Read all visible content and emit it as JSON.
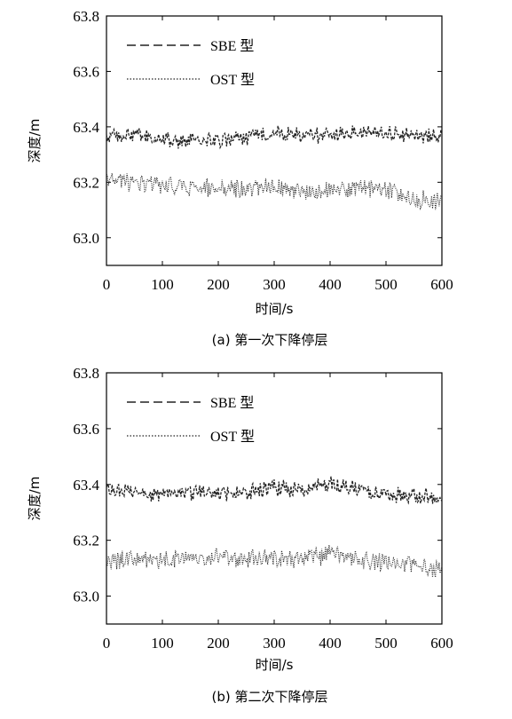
{
  "chart_data": [
    {
      "type": "line",
      "caption": "(a) 第一次下降停层",
      "xlabel": "时间/s",
      "ylabel": "深度/m",
      "xlim": [
        0,
        600
      ],
      "ylim": [
        62.9,
        63.8
      ],
      "xticks": [
        "0",
        "100",
        "200",
        "300",
        "400",
        "500",
        "600"
      ],
      "yticks": [
        "63.0",
        "63.2",
        "63.4",
        "63.6",
        "63.8"
      ],
      "grid": false,
      "legend_position": "top-left",
      "series": [
        {
          "name": "SBE 型",
          "style": "dashed",
          "x": [
            0,
            50,
            100,
            150,
            200,
            250,
            300,
            350,
            400,
            450,
            500,
            550,
            600
          ],
          "values": [
            63.36,
            63.37,
            63.35,
            63.35,
            63.35,
            63.36,
            63.38,
            63.37,
            63.37,
            63.38,
            63.38,
            63.37,
            63.36
          ]
        },
        {
          "name": "OST 型",
          "style": "dotted",
          "x": [
            0,
            50,
            100,
            150,
            200,
            250,
            300,
            350,
            400,
            450,
            500,
            550,
            600
          ],
          "values": [
            63.22,
            63.19,
            63.19,
            63.18,
            63.18,
            63.17,
            63.19,
            63.17,
            63.17,
            63.18,
            63.17,
            63.14,
            63.13
          ]
        }
      ]
    },
    {
      "type": "line",
      "caption": "(b) 第二次下降停层",
      "xlabel": "时间/s",
      "ylabel": "深度/m",
      "xlim": [
        0,
        600
      ],
      "ylim": [
        62.9,
        63.8
      ],
      "xticks": [
        "0",
        "100",
        "200",
        "300",
        "400",
        "500",
        "600"
      ],
      "yticks": [
        "63.0",
        "63.2",
        "63.4",
        "63.6",
        "63.8"
      ],
      "grid": false,
      "legend_position": "top-left",
      "series": [
        {
          "name": "SBE 型",
          "style": "dashed",
          "x": [
            0,
            50,
            100,
            150,
            200,
            250,
            300,
            350,
            400,
            450,
            500,
            550,
            600
          ],
          "values": [
            63.38,
            63.38,
            63.36,
            63.37,
            63.37,
            63.37,
            63.39,
            63.38,
            63.4,
            63.38,
            63.36,
            63.36,
            63.36
          ]
        },
        {
          "name": "OST 型",
          "style": "dotted",
          "x": [
            0,
            50,
            100,
            150,
            200,
            250,
            300,
            350,
            400,
            450,
            500,
            550,
            600
          ],
          "values": [
            63.13,
            63.13,
            63.13,
            63.13,
            63.14,
            63.13,
            63.14,
            63.13,
            63.15,
            63.13,
            63.12,
            63.11,
            63.1
          ]
        }
      ]
    }
  ]
}
